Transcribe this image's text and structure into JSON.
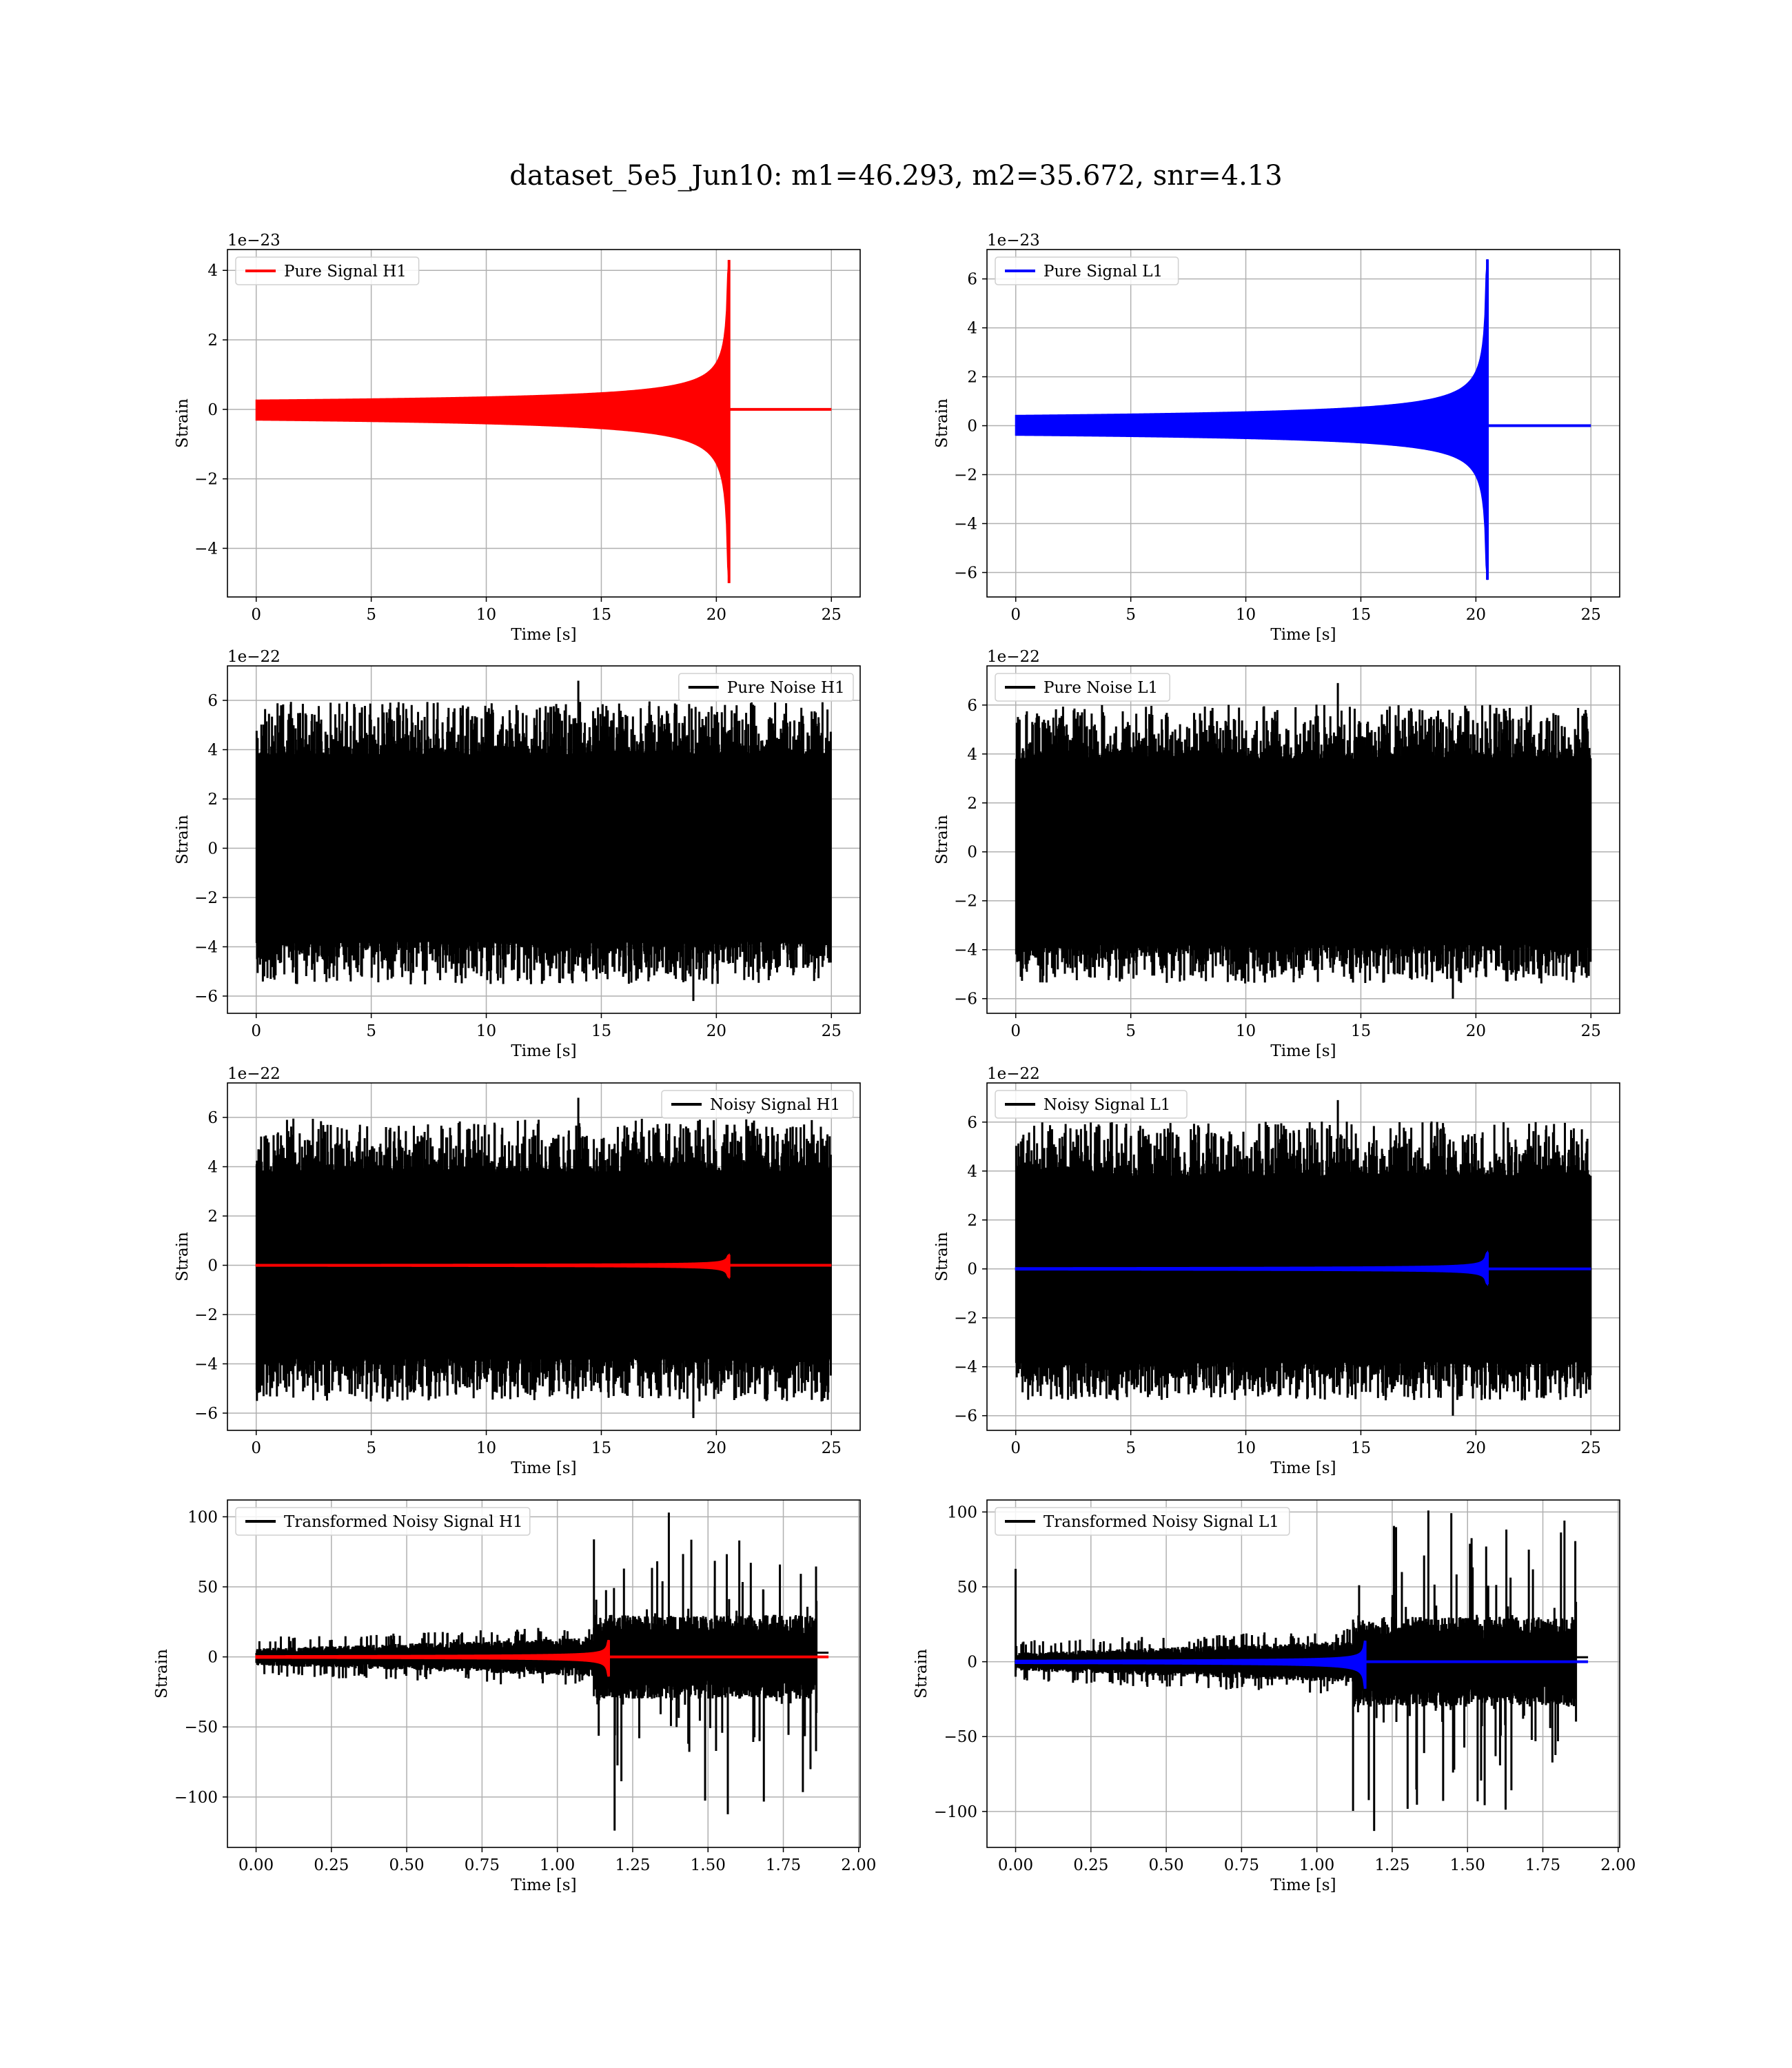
{
  "figure": {
    "title": "dataset_5e5_Jun10: m1=46.293, m2=35.672, snr=4.13"
  },
  "colors": {
    "h1_signal": "#ff0000",
    "l1_signal": "#0000ff",
    "noise": "#000000",
    "grid": "#b0b0b0",
    "axis": "#000000"
  },
  "chart_data": [
    {
      "id": "h1_pure_signal",
      "type": "line",
      "xlabel": "Time [s]",
      "ylabel": "Strain",
      "offset_text": "1e−23",
      "xlim": [
        -1.25,
        26.25
      ],
      "ylim": [
        -5.4,
        4.6
      ],
      "xticks": [
        0,
        5,
        10,
        15,
        20,
        25
      ],
      "xtick_labels": [
        "0",
        "5",
        "10",
        "15",
        "20",
        "25"
      ],
      "yticks": [
        -4,
        -2,
        0,
        2,
        4
      ],
      "ytick_labels": [
        "−4",
        "−2",
        "0",
        "2",
        "4"
      ],
      "grid": true,
      "legend_position": "upper left",
      "x_range": [
        0,
        25
      ],
      "series": [
        {
          "name": "Pure Signal H1",
          "kind": "chirp",
          "color": "#ff0000",
          "peak_time": 20.55,
          "peak_amplitude": 4.3,
          "min_amplitude": -5.0
        }
      ]
    },
    {
      "id": "l1_pure_signal",
      "type": "line",
      "xlabel": "Time [s]",
      "ylabel": "Strain",
      "offset_text": "1e−23",
      "xlim": [
        -1.25,
        26.25
      ],
      "ylim": [
        -7.0,
        7.2
      ],
      "xticks": [
        0,
        5,
        10,
        15,
        20,
        25
      ],
      "xtick_labels": [
        "0",
        "5",
        "10",
        "15",
        "20",
        "25"
      ],
      "yticks": [
        -6,
        -4,
        -2,
        0,
        2,
        4,
        6
      ],
      "ytick_labels": [
        "−6",
        "−4",
        "−2",
        "0",
        "2",
        "4",
        "6"
      ],
      "grid": true,
      "legend_position": "upper left",
      "x_range": [
        0,
        25
      ],
      "series": [
        {
          "name": "Pure Signal L1",
          "kind": "chirp",
          "color": "#0000ff",
          "peak_time": 20.5,
          "peak_amplitude": 6.8,
          "min_amplitude": -6.3
        }
      ]
    },
    {
      "id": "h1_pure_noise",
      "type": "line",
      "xlabel": "Time [s]",
      "ylabel": "Strain",
      "offset_text": "1e−22",
      "xlim": [
        -1.25,
        26.25
      ],
      "ylim": [
        -6.7,
        7.4
      ],
      "xticks": [
        0,
        5,
        10,
        15,
        20,
        25
      ],
      "xtick_labels": [
        "0",
        "5",
        "10",
        "15",
        "20",
        "25"
      ],
      "yticks": [
        -6,
        -4,
        -2,
        0,
        2,
        4,
        6
      ],
      "ytick_labels": [
        "−6",
        "−4",
        "−2",
        "0",
        "2",
        "4",
        "6"
      ],
      "grid": true,
      "legend_position": "upper right",
      "x_range": [
        0,
        25
      ],
      "series": [
        {
          "name": "Pure Noise H1",
          "kind": "noise",
          "color": "#000000",
          "band": 3.8,
          "max": 6.8,
          "min": -6.2
        }
      ]
    },
    {
      "id": "l1_pure_noise",
      "type": "line",
      "xlabel": "Time [s]",
      "ylabel": "Strain",
      "offset_text": "1e−22",
      "xlim": [
        -1.25,
        26.25
      ],
      "ylim": [
        -6.6,
        7.6
      ],
      "xticks": [
        0,
        5,
        10,
        15,
        20,
        25
      ],
      "xtick_labels": [
        "0",
        "5",
        "10",
        "15",
        "20",
        "25"
      ],
      "yticks": [
        -6,
        -4,
        -2,
        0,
        2,
        4,
        6
      ],
      "ytick_labels": [
        "−6",
        "−4",
        "−2",
        "0",
        "2",
        "4",
        "6"
      ],
      "grid": true,
      "legend_position": "upper left",
      "x_range": [
        0,
        25
      ],
      "series": [
        {
          "name": "Pure Noise L1",
          "kind": "noise",
          "color": "#000000",
          "band": 3.8,
          "max": 6.9,
          "min": -6.0
        }
      ]
    },
    {
      "id": "h1_noisy_signal",
      "type": "line",
      "xlabel": "Time [s]",
      "ylabel": "Strain",
      "offset_text": "1e−22",
      "xlim": [
        -1.25,
        26.25
      ],
      "ylim": [
        -6.7,
        7.4
      ],
      "xticks": [
        0,
        5,
        10,
        15,
        20,
        25
      ],
      "xtick_labels": [
        "0",
        "5",
        "10",
        "15",
        "20",
        "25"
      ],
      "yticks": [
        -6,
        -4,
        -2,
        0,
        2,
        4,
        6
      ],
      "ytick_labels": [
        "−6",
        "−4",
        "−2",
        "0",
        "2",
        "4",
        "6"
      ],
      "grid": true,
      "legend_position": "upper right",
      "x_range": [
        0,
        25
      ],
      "series": [
        {
          "name": "Noisy Signal H1",
          "kind": "noise",
          "color": "#000000",
          "band": 3.8,
          "max": 6.8,
          "min": -6.2
        },
        {
          "name": "",
          "kind": "chirp",
          "color": "#ff0000",
          "peak_time": 20.55,
          "peak_amplitude": 0.43,
          "min_amplitude": -0.5
        }
      ]
    },
    {
      "id": "l1_noisy_signal",
      "type": "line",
      "xlabel": "Time [s]",
      "ylabel": "Strain",
      "offset_text": "1e−22",
      "xlim": [
        -1.25,
        26.25
      ],
      "ylim": [
        -6.6,
        7.6
      ],
      "xticks": [
        0,
        5,
        10,
        15,
        20,
        25
      ],
      "xtick_labels": [
        "0",
        "5",
        "10",
        "15",
        "20",
        "25"
      ],
      "yticks": [
        -6,
        -4,
        -2,
        0,
        2,
        4,
        6
      ],
      "ytick_labels": [
        "−6",
        "−4",
        "−2",
        "0",
        "2",
        "4",
        "6"
      ],
      "grid": true,
      "legend_position": "upper left",
      "x_range": [
        0,
        25
      ],
      "series": [
        {
          "name": "Noisy Signal L1",
          "kind": "noise",
          "color": "#000000",
          "band": 3.8,
          "max": 6.9,
          "min": -6.0
        },
        {
          "name": "",
          "kind": "chirp",
          "color": "#0000ff",
          "peak_time": 20.5,
          "peak_amplitude": 0.68,
          "min_amplitude": -0.63
        }
      ]
    },
    {
      "id": "h1_transformed",
      "type": "line",
      "xlabel": "Time [s]",
      "ylabel": "Strain",
      "offset_text": "",
      "xlim": [
        -0.095,
        2.005
      ],
      "ylim": [
        -136,
        112
      ],
      "xticks": [
        0.0,
        0.25,
        0.5,
        0.75,
        1.0,
        1.25,
        1.5,
        1.75,
        2.0
      ],
      "xtick_labels": [
        "0.00",
        "0.25",
        "0.50",
        "0.75",
        "1.00",
        "1.25",
        "1.50",
        "1.75",
        "2.00"
      ],
      "yticks": [
        -100,
        -50,
        0,
        50,
        100
      ],
      "ytick_labels": [
        "−100",
        "−50",
        "0",
        "50",
        "100"
      ],
      "grid": true,
      "legend_position": "upper left",
      "x_range": [
        0,
        1.9
      ],
      "series": [
        {
          "name": "Transformed Noisy Signal H1",
          "kind": "whitened",
          "color": "#000000",
          "rise_time": 1.12,
          "end_time": 1.86,
          "max": 103,
          "min": -124,
          "spike_at_start": 0
        },
        {
          "name": "",
          "kind": "chirp",
          "color": "#ff0000",
          "peak_time": 1.17,
          "peak_amplitude": 12,
          "min_amplitude": -14
        }
      ]
    },
    {
      "id": "l1_transformed",
      "type": "line",
      "xlabel": "Time [s]",
      "ylabel": "Strain",
      "offset_text": "",
      "xlim": [
        -0.095,
        2.005
      ],
      "ylim": [
        -124,
        108
      ],
      "xticks": [
        0.0,
        0.25,
        0.5,
        0.75,
        1.0,
        1.25,
        1.5,
        1.75,
        2.0
      ],
      "xtick_labels": [
        "0.00",
        "0.25",
        "0.50",
        "0.75",
        "1.00",
        "1.25",
        "1.50",
        "1.75",
        "2.00"
      ],
      "yticks": [
        -100,
        -50,
        0,
        50,
        100
      ],
      "ytick_labels": [
        "−100",
        "−50",
        "0",
        "50",
        "100"
      ],
      "grid": true,
      "legend_position": "upper left",
      "x_range": [
        0,
        1.9
      ],
      "series": [
        {
          "name": "Transformed Noisy Signal L1",
          "kind": "whitened",
          "color": "#000000",
          "rise_time": 1.12,
          "end_time": 1.86,
          "max": 101,
          "min": -113,
          "spike_at_start": 62
        },
        {
          "name": "",
          "kind": "chirp",
          "color": "#0000ff",
          "peak_time": 1.16,
          "peak_amplitude": 14,
          "min_amplitude": -18
        }
      ]
    }
  ]
}
